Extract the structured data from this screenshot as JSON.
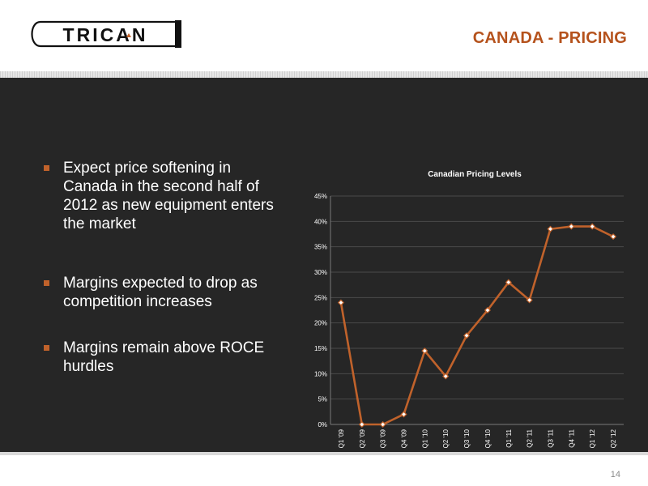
{
  "header": {
    "logo_text": "TRICAN",
    "title": "CANADA - PRICING"
  },
  "bullets": [
    "Expect price softening in Canada in the second half of 2012 as new equipment enters the market",
    "Margins expected to drop as competition increases",
    "Margins remain above ROCE hurdles"
  ],
  "colors": {
    "accent": "#b5521c",
    "line": "#c0622b",
    "background": "#262626"
  },
  "chart_data": {
    "type": "line",
    "title": "Canadian Pricing Levels",
    "categories": [
      "Q1 '09",
      "Q2 '09",
      "Q3 '09",
      "Q4 '09",
      "Q1 '10",
      "Q2 '10",
      "Q3 '10",
      "Q4 '10",
      "Q1 '11",
      "Q2 '11",
      "Q3 '11",
      "Q4 '11",
      "Q1 '12",
      "Q2 '12"
    ],
    "values": [
      24,
      0,
      0,
      2,
      14.5,
      9.5,
      17.5,
      22.5,
      28,
      24.5,
      38.5,
      39,
      39,
      37
    ],
    "ylim": [
      0,
      45
    ],
    "yticks": [
      "0%",
      "5%",
      "10%",
      "15%",
      "20%",
      "25%",
      "30%",
      "35%",
      "40%",
      "45%"
    ],
    "grid": true
  },
  "footer": {
    "page_number": "14"
  }
}
